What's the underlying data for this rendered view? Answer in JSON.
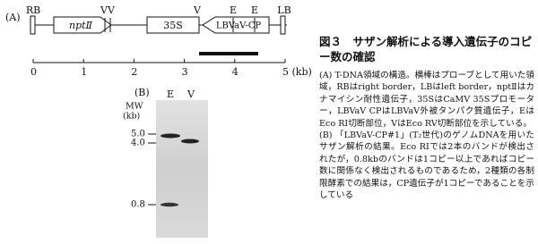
{
  "panel_a": {
    "label": "(A)",
    "sites": [
      "RB",
      "V",
      "V",
      "V",
      "E",
      "E",
      "LB"
    ],
    "boxes": [
      "nptⅡ",
      "35S",
      "LBVaV-CP"
    ],
    "scale": [
      "0",
      "1",
      "2",
      "3",
      "4",
      "5 (kb)"
    ]
  },
  "panel_b": {
    "label": "(B)",
    "lanes": [
      "E",
      "V"
    ],
    "mw_title": [
      "MW",
      "(kb)"
    ],
    "mw": [
      "5.0",
      "4.0",
      "0.8"
    ]
  },
  "caption": {
    "title": "図３　サザン解析による導入遺伝子のコピー数の確認",
    "paragraphs": [
      "(A) T-DNA領域の構造。横棒はプローブとして用いた領域，RBはright border，LBはleft border，nptⅡはカナマイシン耐性遺伝子，35SはCaMV 35Sプロモーター，LBVaV CPはLBVaV外被タンパク質遺伝子，EはEco RI切断部位，VはEco RV切断部位を示している。",
      "(B) 「LBVaV-CP#1」(T₂世代)のゲノムDNAを用いたサザン解析の結果。Eco RIでは2本のバンドが検出されたが，0.8kbのバンドは1コピー以上であればコピー数に関係なく検出されるものであるため，2種類の各制限酵素での結果は，CP遺伝子が1コピーであることを示している"
    ]
  }
}
